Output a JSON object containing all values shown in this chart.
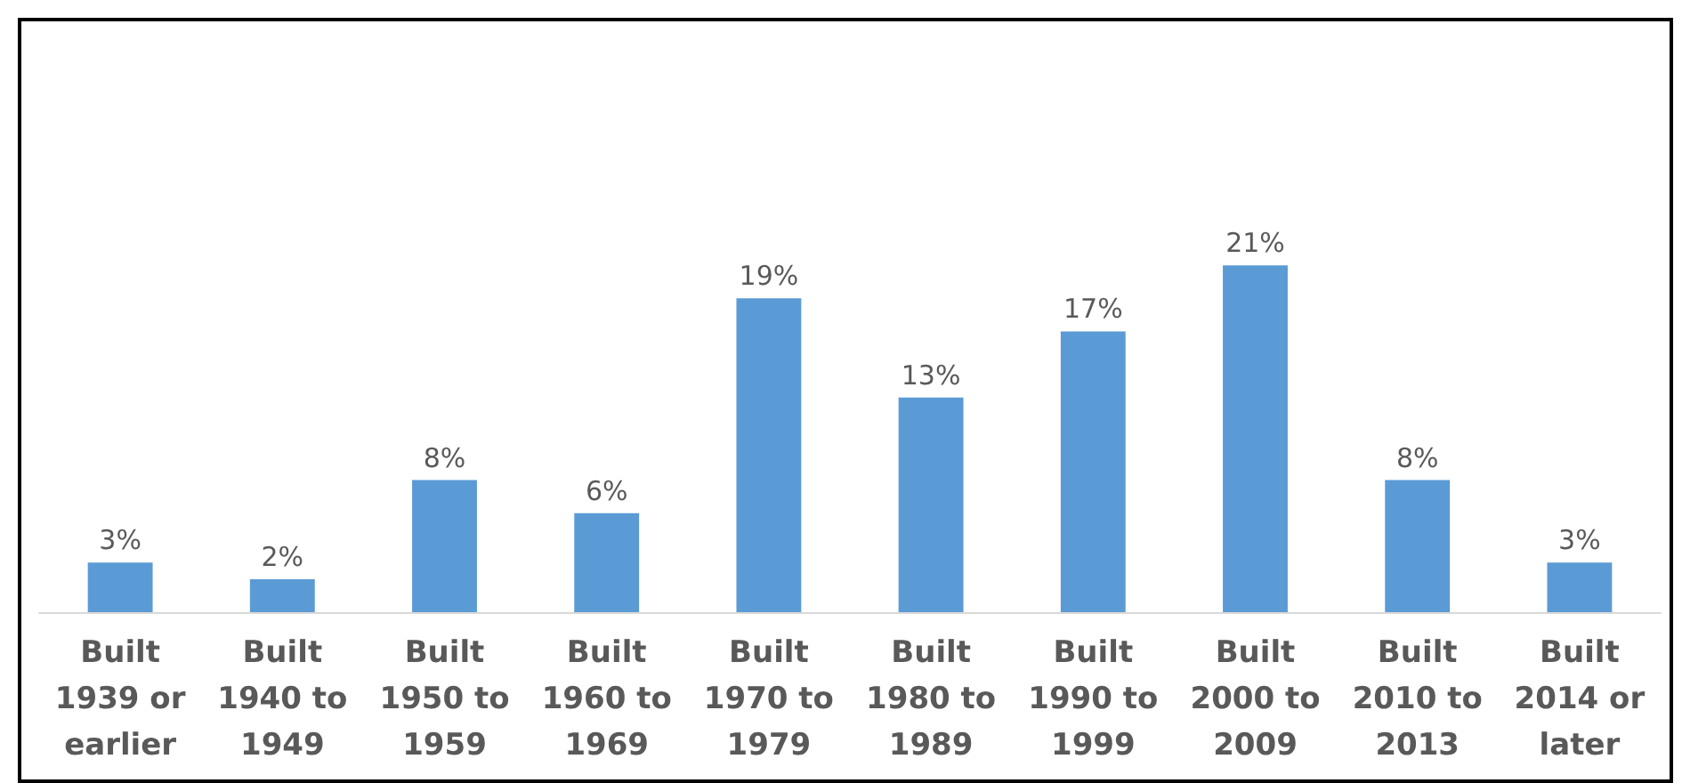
{
  "chart_data": {
    "type": "bar",
    "categories": [
      "Built\n1939 or\nearlier",
      "Built\n1940 to\n1949",
      "Built\n1950 to\n1959",
      "Built\n1960 to\n1969",
      "Built\n1970 to\n1979",
      "Built\n1980 to\n1989",
      "Built\n1990 to\n1999",
      "Built\n2000 to\n2009",
      "Built\n2010 to\n2013",
      "Built\n2014 or\nlater"
    ],
    "values": [
      3,
      2,
      8,
      6,
      19,
      13,
      17,
      21,
      8,
      3
    ],
    "value_labels": [
      "3%",
      "2%",
      "8%",
      "6%",
      "19%",
      "13%",
      "17%",
      "21%",
      "8%",
      "3%"
    ],
    "color": "#5b9bd5"
  }
}
